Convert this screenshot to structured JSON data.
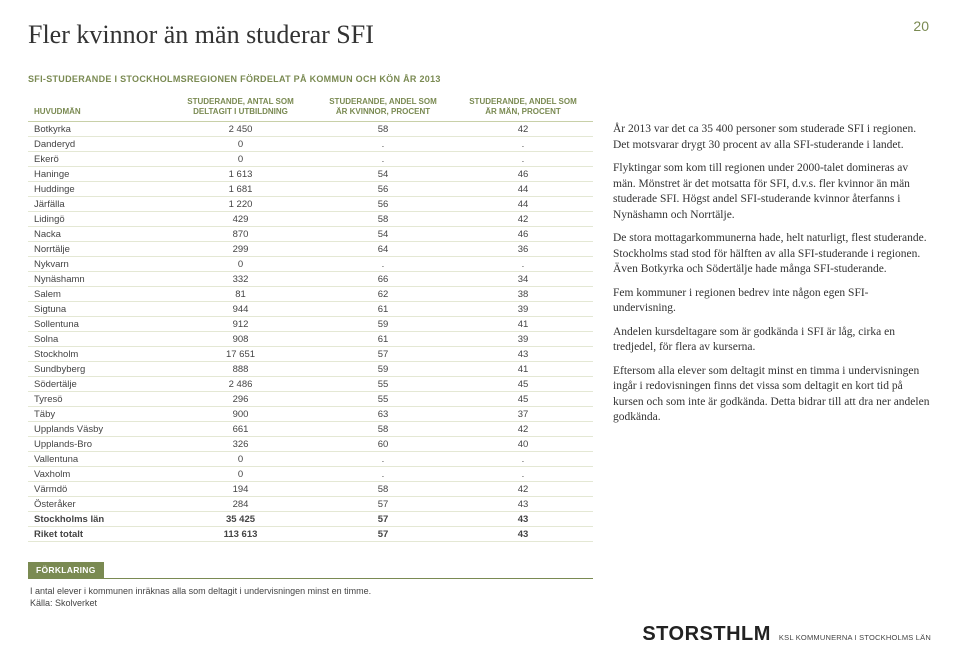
{
  "page_number": "20",
  "title": "Fler kvinnor än män studerar SFI",
  "subtitle": "SFI-STUDERANDE I STOCKHOLMSREGIONEN FÖRDELAT PÅ KOMMUN OCH KÖN ÅR 2013",
  "table": {
    "headers": [
      "HUVUDMÄN",
      "STUDERANDE, ANTAL SOM\nDELTAGIT I UTBILDNING",
      "STUDERANDE, ANDEL SOM\nÄR KVINNOR, PROCENT",
      "STUDERANDE, ANDEL SOM\nÄR MÄN, PROCENT"
    ],
    "rows": [
      {
        "c": [
          "Botkyrka",
          "2 450",
          "58",
          "42"
        ]
      },
      {
        "c": [
          "Danderyd",
          "0",
          ".",
          "."
        ]
      },
      {
        "c": [
          "Ekerö",
          "0",
          ".",
          "."
        ]
      },
      {
        "c": [
          "Haninge",
          "1 613",
          "54",
          "46"
        ]
      },
      {
        "c": [
          "Huddinge",
          "1 681",
          "56",
          "44"
        ]
      },
      {
        "c": [
          "Järfälla",
          "1 220",
          "56",
          "44"
        ]
      },
      {
        "c": [
          "Lidingö",
          "429",
          "58",
          "42"
        ]
      },
      {
        "c": [
          "Nacka",
          "870",
          "54",
          "46"
        ]
      },
      {
        "c": [
          "Norrtälje",
          "299",
          "64",
          "36"
        ]
      },
      {
        "c": [
          "Nykvarn",
          "0",
          ".",
          "."
        ]
      },
      {
        "c": [
          "Nynäshamn",
          "332",
          "66",
          "34"
        ]
      },
      {
        "c": [
          "Salem",
          "81",
          "62",
          "38"
        ]
      },
      {
        "c": [
          "Sigtuna",
          "944",
          "61",
          "39"
        ]
      },
      {
        "c": [
          "Sollentuna",
          "912",
          "59",
          "41"
        ]
      },
      {
        "c": [
          "Solna",
          "908",
          "61",
          "39"
        ]
      },
      {
        "c": [
          "Stockholm",
          "17 651",
          "57",
          "43"
        ]
      },
      {
        "c": [
          "Sundbyberg",
          "888",
          "59",
          "41"
        ]
      },
      {
        "c": [
          "Södertälje",
          "2 486",
          "55",
          "45"
        ]
      },
      {
        "c": [
          "Tyresö",
          "296",
          "55",
          "45"
        ]
      },
      {
        "c": [
          "Täby",
          "900",
          "63",
          "37"
        ]
      },
      {
        "c": [
          "Upplands Väsby",
          "661",
          "58",
          "42"
        ]
      },
      {
        "c": [
          "Upplands-Bro",
          "326",
          "60",
          "40"
        ]
      },
      {
        "c": [
          "Vallentuna",
          "0",
          ".",
          "."
        ]
      },
      {
        "c": [
          "Vaxholm",
          "0",
          ".",
          "."
        ]
      },
      {
        "c": [
          "Värmdö",
          "194",
          "58",
          "42"
        ]
      },
      {
        "c": [
          "Österåker",
          "284",
          "57",
          "43"
        ]
      },
      {
        "c": [
          "Stockholms län",
          "35 425",
          "57",
          "43"
        ],
        "bold": true
      },
      {
        "c": [
          "Riket totalt",
          "113 613",
          "57",
          "43"
        ],
        "bold": true
      }
    ]
  },
  "aside": {
    "p1": "År 2013 var det ca 35 400 personer som studerade SFI i regionen. Det motsvarar drygt 30 procent av alla SFI-studerande i landet.",
    "p2": "Flyktingar som kom till regionen under 2000-talet domineras av män. Mönstret är det motsatta för SFI, d.v.s. fler kvinnor än män studerade SFI. Högst andel SFI-studerande kvinnor återfanns i Nynäshamn och Norrtälje.",
    "p3": "De stora mottagarkommunerna hade, helt naturligt, flest studerande. Stockholms stad stod för hälften av alla SFI-studerande i regionen. Även Botkyrka och Södertälje hade många SFI-studerande.",
    "p4": "Fem kommuner i regionen bedrev inte någon egen SFI-undervisning.",
    "p5": "Andelen kursdeltagare som är godkända i SFI är låg, cirka en tredjedel, för flera av kurserna.",
    "p6": "Eftersom alla elever som deltagit minst en timma i undervisningen ingår i redovisningen finns det vissa som deltagit en kort tid på kursen och som inte är godkända. Detta bidrar till att dra ner andelen godkända."
  },
  "footer": {
    "label": "FÖRKLARING",
    "line1": "I antal elever i kommunen inräknas alla som deltagit i undervisningen minst en timme.",
    "line2": "Källa: Skolverket"
  },
  "brand": {
    "main": "STORSTHLM",
    "sub": "KSL KOMMUNERNA I STOCKHOLMS LÄN"
  }
}
